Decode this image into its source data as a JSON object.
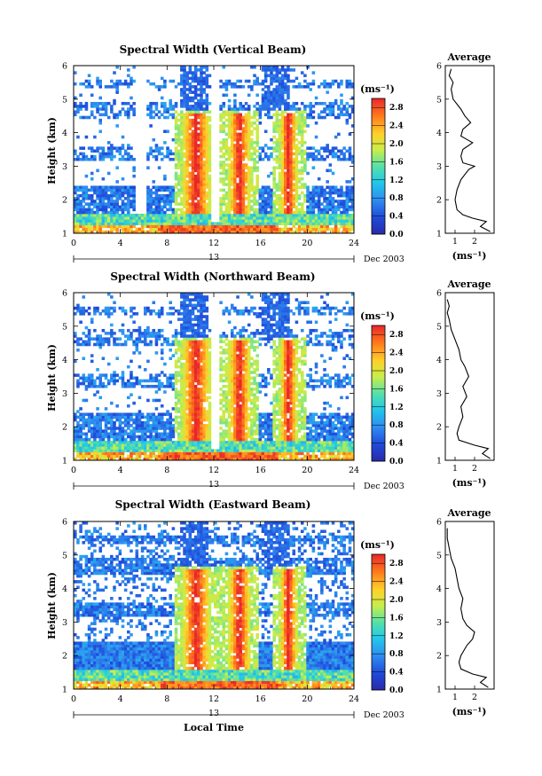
{
  "figure": {
    "date_label": "Dec 2003",
    "day_label": "13",
    "xlabel": "Local Time",
    "ylabel": "Height (km)",
    "colorbar_unit": "(ms⁻¹)",
    "avg_title": "Average",
    "avg_xlabel": "(ms⁻¹)"
  },
  "chart_data": [
    {
      "type": "heatmap",
      "title": "Spectral Width (Vertical Beam)",
      "xlabel": "",
      "ylabel": "Height (km)",
      "xlim": [
        0,
        24
      ],
      "ylim": [
        1,
        6
      ],
      "xticks": [
        0,
        4,
        8,
        12,
        16,
        20,
        24
      ],
      "yticks": [
        1,
        2,
        3,
        4,
        5,
        6
      ],
      "colorbar": {
        "label": "(ms⁻¹)",
        "range": [
          0,
          3.0
        ],
        "ticks": [
          0.0,
          0.4,
          0.8,
          1.2,
          1.6,
          2.0,
          2.4,
          2.8
        ]
      },
      "average_profile": {
        "title": "Average",
        "xlabel": "(ms⁻¹)",
        "xlim": [
          0.5,
          3.0
        ],
        "xticks": [
          1,
          2
        ],
        "ylim": [
          1,
          6
        ],
        "height": [
          1.05,
          1.2,
          1.35,
          1.45,
          1.55,
          1.7,
          2.0,
          2.3,
          2.6,
          2.9,
          3.0,
          3.1,
          3.3,
          3.5,
          3.7,
          3.8,
          3.9,
          4.1,
          4.3,
          4.5,
          4.7,
          5.0,
          5.3,
          5.5,
          5.7,
          5.9
        ],
        "width": [
          2.8,
          2.3,
          2.6,
          1.9,
          1.4,
          1.1,
          1.0,
          1.1,
          1.3,
          1.7,
          2.0,
          1.4,
          1.3,
          1.4,
          1.9,
          1.6,
          1.3,
          1.4,
          1.8,
          1.5,
          1.3,
          0.9,
          0.8,
          0.9,
          0.7,
          0.8
        ]
      }
    },
    {
      "type": "heatmap",
      "title": "Spectral Width (Northward Beam)",
      "xlabel": "",
      "ylabel": "Height (km)",
      "xlim": [
        0,
        24
      ],
      "ylim": [
        1,
        6
      ],
      "xticks": [
        0,
        4,
        8,
        12,
        16,
        20,
        24
      ],
      "yticks": [
        1,
        2,
        3,
        4,
        5,
        6
      ],
      "colorbar": {
        "label": "(ms⁻¹)",
        "range": [
          0,
          3.0
        ],
        "ticks": [
          0.0,
          0.4,
          0.8,
          1.2,
          1.6,
          2.0,
          2.4,
          2.8
        ]
      },
      "average_profile": {
        "title": "Average",
        "xlabel": "(ms⁻¹)",
        "xlim": [
          0.5,
          3.0
        ],
        "xticks": [
          1,
          2
        ],
        "ylim": [
          1,
          6
        ],
        "height": [
          1.05,
          1.2,
          1.35,
          1.45,
          1.6,
          1.8,
          2.0,
          2.3,
          2.6,
          2.9,
          3.2,
          3.5,
          3.8,
          4.0,
          4.3,
          4.6,
          4.9,
          5.2,
          5.4,
          5.6,
          5.8
        ],
        "width": [
          2.8,
          2.4,
          2.7,
          2.0,
          1.2,
          1.1,
          1.2,
          1.4,
          1.3,
          1.6,
          1.4,
          1.7,
          1.5,
          1.3,
          1.2,
          1.0,
          0.8,
          0.7,
          0.6,
          0.7,
          0.6
        ]
      }
    },
    {
      "type": "heatmap",
      "title": "Spectral Width (Eastward Beam)",
      "xlabel": "Local Time",
      "ylabel": "Height (km)",
      "xlim": [
        0,
        24
      ],
      "ylim": [
        1,
        6
      ],
      "xticks": [
        0,
        4,
        8,
        12,
        16,
        20,
        24
      ],
      "yticks": [
        1,
        2,
        3,
        4,
        5,
        6
      ],
      "colorbar": {
        "label": "(ms⁻¹)",
        "range": [
          0,
          3.0
        ],
        "ticks": [
          0.0,
          0.4,
          0.8,
          1.2,
          1.6,
          2.0,
          2.4,
          2.8
        ]
      },
      "average_profile": {
        "title": "Average",
        "xlabel": "(ms⁻¹)",
        "xlim": [
          0.5,
          3.0
        ],
        "xticks": [
          1,
          2
        ],
        "ylim": [
          1,
          6
        ],
        "height": [
          1.05,
          1.2,
          1.35,
          1.45,
          1.6,
          1.8,
          2.0,
          2.3,
          2.5,
          2.7,
          2.9,
          3.1,
          3.4,
          3.7,
          4.0,
          4.3,
          4.6,
          4.9,
          5.2,
          5.5,
          5.8
        ],
        "width": [
          2.7,
          2.3,
          2.6,
          1.9,
          1.3,
          1.2,
          1.3,
          1.6,
          1.9,
          2.0,
          1.6,
          1.4,
          1.3,
          1.4,
          1.2,
          1.1,
          1.0,
          0.8,
          0.7,
          0.6,
          0.6
        ]
      }
    }
  ]
}
